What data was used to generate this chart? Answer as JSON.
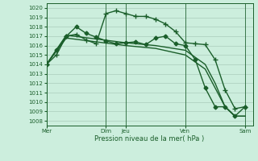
{
  "background_color": "#cceedd",
  "grid_color": "#aaccbb",
  "line_color": "#1a5e2a",
  "xlabel": "Pression niveau de la mer( hPa )",
  "ylim": [
    1007.5,
    1020.5
  ],
  "yticks": [
    1008,
    1009,
    1010,
    1011,
    1012,
    1013,
    1014,
    1015,
    1016,
    1017,
    1018,
    1019,
    1020
  ],
  "xlim": [
    0,
    10.4
  ],
  "xtick_positions": [
    0.0,
    3.0,
    4.0,
    7.0,
    10.0
  ],
  "xtick_labels": [
    "Mer",
    "Dim",
    "Jeu",
    "Ven",
    "Sam"
  ],
  "vlines_x": [
    0,
    3.0,
    4.0,
    7.0,
    10.0
  ],
  "series": [
    {
      "x": [
        0,
        0.5,
        1.0,
        1.5,
        2.0,
        2.5,
        3.0,
        3.5,
        4.0,
        4.5,
        5.0,
        5.5,
        6.0,
        6.5,
        7.0,
        7.5,
        8.0,
        8.5,
        9.0,
        9.5,
        10.0
      ],
      "y": [
        1014.0,
        1015.0,
        1017.0,
        1017.2,
        1016.6,
        1016.2,
        1019.4,
        1019.7,
        1019.4,
        1019.1,
        1019.1,
        1018.8,
        1018.3,
        1017.5,
        1016.3,
        1016.2,
        1016.1,
        1014.5,
        1011.3,
        1009.3,
        1009.5
      ],
      "marker": "+",
      "markersize": 4,
      "linewidth": 1.0
    },
    {
      "x": [
        0,
        1.0,
        2.5,
        4.0,
        5.5,
        7.0,
        8.0,
        8.5,
        9.0,
        9.5,
        10.0
      ],
      "y": [
        1014.0,
        1016.8,
        1016.4,
        1016.0,
        1015.7,
        1015.0,
        1013.5,
        1011.5,
        1009.5,
        1008.5,
        1008.5
      ],
      "marker": null,
      "markersize": 0,
      "linewidth": 1.0
    },
    {
      "x": [
        0,
        1.0,
        2.5,
        4.0,
        5.5,
        7.0,
        8.0,
        8.5,
        9.0,
        9.5,
        10.0
      ],
      "y": [
        1014.0,
        1017.1,
        1016.7,
        1016.3,
        1016.0,
        1015.5,
        1014.0,
        1012.0,
        1009.5,
        1008.5,
        1008.5
      ],
      "marker": null,
      "markersize": 0,
      "linewidth": 1.0
    },
    {
      "x": [
        0,
        0.5,
        1.0,
        1.5,
        2.0,
        2.5,
        3.0,
        3.5,
        4.0,
        4.5,
        5.0,
        5.5,
        6.0,
        6.5,
        7.0,
        7.5,
        8.0,
        8.5,
        9.0,
        9.5,
        10.0
      ],
      "y": [
        1014.0,
        1015.5,
        1017.0,
        1018.0,
        1017.3,
        1016.9,
        1016.5,
        1016.2,
        1016.3,
        1016.4,
        1016.1,
        1016.8,
        1017.0,
        1016.2,
        1016.0,
        1014.5,
        1011.5,
        1009.5,
        1009.5,
        1008.5,
        1009.5
      ],
      "marker": "D",
      "markersize": 2.5,
      "linewidth": 1.0
    }
  ]
}
